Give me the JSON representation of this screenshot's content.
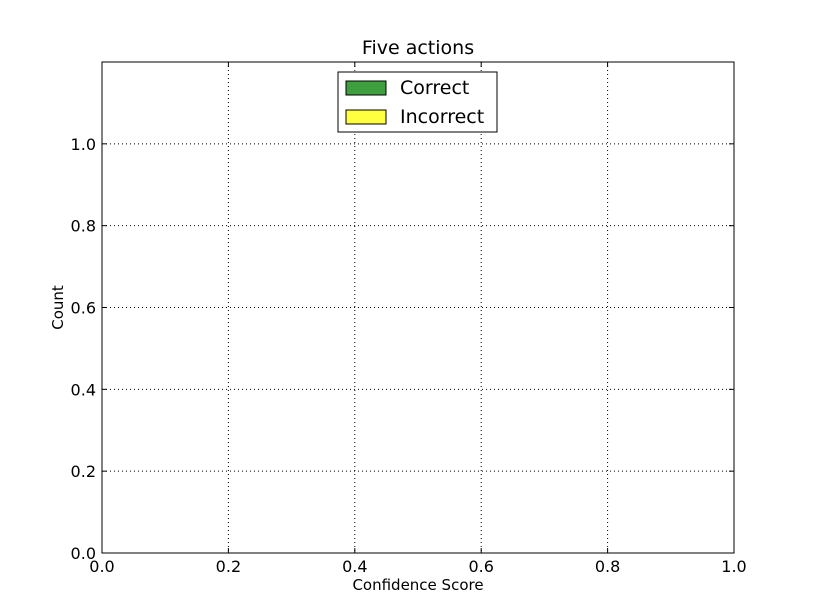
{
  "chart_data": {
    "type": "bar",
    "title": "Five actions",
    "xlabel": "Confidence Score",
    "ylabel": "Count",
    "xlim": [
      0.0,
      1.0
    ],
    "ylim": [
      0.0,
      1.2
    ],
    "xticks": [
      "0.0",
      "0.2",
      "0.4",
      "0.6",
      "0.8",
      "1.0"
    ],
    "yticks": [
      "0.0",
      "0.2",
      "0.4",
      "0.6",
      "0.8",
      "1.0"
    ],
    "grid": true,
    "legend_position": "top-center",
    "series": [
      {
        "name": "Correct",
        "color": "#3f9f3f",
        "values": []
      },
      {
        "name": "Incorrect",
        "color": "#ffff3f",
        "values": []
      }
    ]
  }
}
